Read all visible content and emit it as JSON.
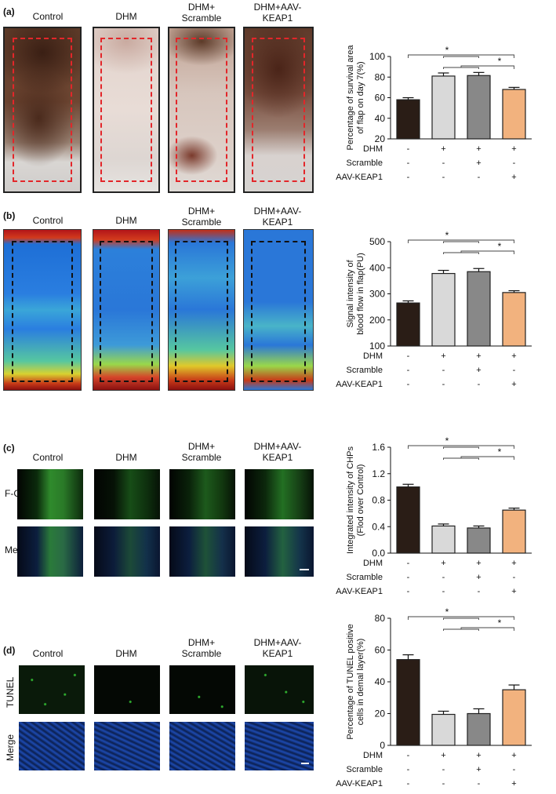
{
  "colors": {
    "control": "#2a1d16",
    "dhm": "#d9d9d9",
    "dhm_scramble": "#888888",
    "dhm_aav": "#f2b27e",
    "roi_dashed_red": "#e3262a",
    "roi_dashed_black": "#111111"
  },
  "groups": [
    "Control",
    "DHM",
    "DHM+\nScramble",
    "DHM+AAV-\nKEAP1"
  ],
  "treatment_table": {
    "rows": [
      {
        "label": "DHM",
        "marks": [
          "-",
          "+",
          "+",
          "+"
        ]
      },
      {
        "label": "Scramble",
        "marks": [
          "-",
          "-",
          "+",
          "-"
        ]
      },
      {
        "label": "AAV-KEAP1",
        "marks": [
          "-",
          "-",
          "-",
          "+"
        ]
      }
    ]
  },
  "significance_mark": "*",
  "panels": [
    {
      "letter": "(a)",
      "row_labels": []
    },
    {
      "letter": "(b)",
      "row_labels": []
    },
    {
      "letter": "(c)",
      "row_labels": [
        "F-CHP",
        "Merge"
      ]
    },
    {
      "letter": "(d)",
      "row_labels": [
        "TUNEL",
        "Merge"
      ]
    }
  ],
  "chart_data": [
    {
      "type": "bar",
      "categories": [
        "Control",
        "DHM",
        "DHM+Scramble",
        "DHM+AAV-KEAP1"
      ],
      "values": [
        58,
        81,
        81.5,
        68
      ],
      "errors": [
        2,
        3,
        3,
        2
      ],
      "ylabel": "Percentage of survival area\nof flap on day 7(%)",
      "ylim": [
        20,
        100
      ],
      "yticks": [
        20,
        40,
        60,
        80,
        100
      ],
      "significance": [
        {
          "from": 0,
          "to": [
            1,
            2,
            3
          ],
          "label": "*"
        },
        {
          "from": 3,
          "to": [
            1,
            2
          ],
          "label": "*"
        }
      ]
    },
    {
      "type": "bar",
      "categories": [
        "Control",
        "DHM",
        "DHM+Scramble",
        "DHM+AAV-KEAP1"
      ],
      "values": [
        265,
        378,
        385,
        305
      ],
      "errors": [
        8,
        12,
        12,
        7
      ],
      "ylabel": "Signal intensity of\nblood flow in flap(PU)",
      "ylim": [
        100,
        500
      ],
      "yticks": [
        100,
        200,
        300,
        400,
        500
      ],
      "significance": [
        {
          "from": 0,
          "to": [
            1,
            2,
            3
          ],
          "label": "*"
        },
        {
          "from": 3,
          "to": [
            1,
            2
          ],
          "label": "*"
        }
      ]
    },
    {
      "type": "bar",
      "categories": [
        "Control",
        "DHM",
        "DHM+Scramble",
        "DHM+AAV-KEAP1"
      ],
      "values": [
        1.0,
        0.41,
        0.38,
        0.65
      ],
      "errors": [
        0.04,
        0.03,
        0.03,
        0.03
      ],
      "ylabel": "Integrated intensity of CHPs\n(Flod over Control)",
      "ylim": [
        0.0,
        1.6
      ],
      "yticks": [
        0.0,
        0.4,
        0.8,
        1.2,
        1.6
      ],
      "significance": [
        {
          "from": 0,
          "to": [
            1,
            2,
            3
          ],
          "label": "*"
        },
        {
          "from": 3,
          "to": [
            1,
            2
          ],
          "label": "*"
        }
      ]
    },
    {
      "type": "bar",
      "categories": [
        "Control",
        "DHM",
        "DHM+Scramble",
        "DHM+AAV-KEAP1"
      ],
      "values": [
        54,
        19.5,
        20,
        35
      ],
      "errors": [
        3,
        2,
        3,
        3
      ],
      "ylabel": "Percentage of TUNEL positive\ncells in demal layer(%)",
      "ylim": [
        0,
        80
      ],
      "yticks": [
        0,
        20,
        40,
        60,
        80
      ],
      "significance": [
        {
          "from": 0,
          "to": [
            1,
            2,
            3
          ],
          "label": "*"
        },
        {
          "from": 3,
          "to": [
            1,
            2
          ],
          "label": "*"
        }
      ]
    }
  ]
}
